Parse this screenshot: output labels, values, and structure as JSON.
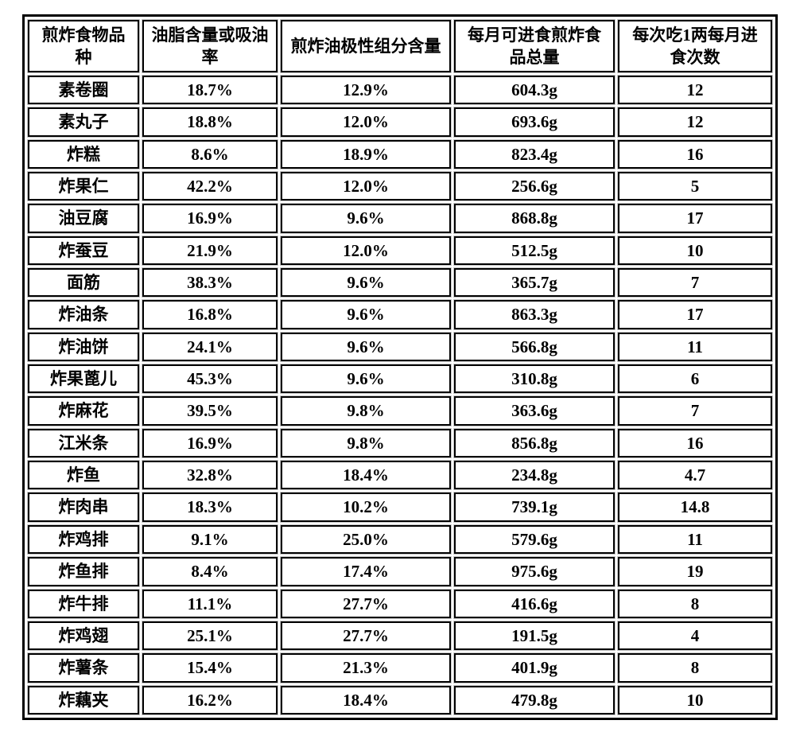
{
  "colors": {
    "background": "#ffffff",
    "table_border": "#000000",
    "cell_border": "#000000",
    "cell_halo": "#c8c8c8",
    "text": "#000000"
  },
  "chart_data": {
    "type": "table",
    "title": "",
    "columns": [
      "煎炸食物品种",
      "油脂含量或吸油率",
      "煎炸油极性组分含量",
      "每月可进食煎炸食品总量",
      "每次吃1两每月进食次数"
    ],
    "rows": [
      [
        "素卷圈",
        "18.7%",
        "12.9%",
        "604.3g",
        "12"
      ],
      [
        "素丸子",
        "18.8%",
        "12.0%",
        "693.6g",
        "12"
      ],
      [
        "炸糕",
        "8.6%",
        "18.9%",
        "823.4g",
        "16"
      ],
      [
        "炸果仁",
        "42.2%",
        "12.0%",
        "256.6g",
        "5"
      ],
      [
        "油豆腐",
        "16.9%",
        "9.6%",
        "868.8g",
        "17"
      ],
      [
        "炸蚕豆",
        "21.9%",
        "12.0%",
        "512.5g",
        "10"
      ],
      [
        "面筋",
        "38.3%",
        "9.6%",
        "365.7g",
        "7"
      ],
      [
        "炸油条",
        "16.8%",
        "9.6%",
        "863.3g",
        "17"
      ],
      [
        "炸油饼",
        "24.1%",
        "9.6%",
        "566.8g",
        "11"
      ],
      [
        "炸果蓖儿",
        "45.3%",
        "9.6%",
        "310.8g",
        "6"
      ],
      [
        "炸麻花",
        "39.5%",
        "9.8%",
        "363.6g",
        "7"
      ],
      [
        "江米条",
        "16.9%",
        "9.8%",
        "856.8g",
        "16"
      ],
      [
        "炸鱼",
        "32.8%",
        "18.4%",
        "234.8g",
        "4.7"
      ],
      [
        "炸肉串",
        "18.3%",
        "10.2%",
        "739.1g",
        "14.8"
      ],
      [
        "炸鸡排",
        "9.1%",
        "25.0%",
        "579.6g",
        "11"
      ],
      [
        "炸鱼排",
        "8.4%",
        "17.4%",
        "975.6g",
        "19"
      ],
      [
        "炸牛排",
        "11.1%",
        "27.7%",
        "416.6g",
        "8"
      ],
      [
        "炸鸡翅",
        "25.1%",
        "27.7%",
        "191.5g",
        "4"
      ],
      [
        "炸薯条",
        "15.4%",
        "21.3%",
        "401.9g",
        "8"
      ],
      [
        "炸藕夹",
        "16.2%",
        "18.4%",
        "479.8g",
        "10"
      ]
    ]
  }
}
